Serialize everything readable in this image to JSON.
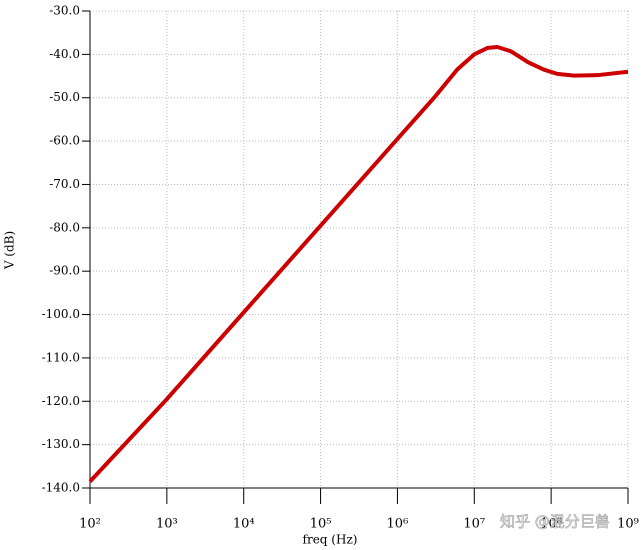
{
  "chart_data": {
    "type": "line",
    "x_label": "freq (Hz)",
    "y_label": "V (dB)",
    "log_x": true,
    "grid": true,
    "xlim": [
      100,
      1000000000
    ],
    "xticks": [
      {
        "value": 100,
        "label": "10²"
      },
      {
        "value": 1000,
        "label": "10³"
      },
      {
        "value": 10000,
        "label": "10⁴"
      },
      {
        "value": 100000,
        "label": "10⁵"
      },
      {
        "value": 1000000,
        "label": "10⁶"
      },
      {
        "value": 10000000,
        "label": "10⁷"
      },
      {
        "value": 100000000,
        "label": "10⁸"
      },
      {
        "value": 1000000000,
        "label": "10⁹"
      }
    ],
    "ylim": [
      -140,
      -30
    ],
    "yticks": [
      {
        "value": -30,
        "label": "-30.0"
      },
      {
        "value": -40,
        "label": "-40.0"
      },
      {
        "value": -50,
        "label": "-50.0"
      },
      {
        "value": -60,
        "label": "-60.0"
      },
      {
        "value": -70,
        "label": "-70.0"
      },
      {
        "value": -80,
        "label": "-80.0"
      },
      {
        "value": -90,
        "label": "-90.0"
      },
      {
        "value": -100,
        "label": "-100.0"
      },
      {
        "value": -110,
        "label": "-110.0"
      },
      {
        "value": -120,
        "label": "-120.0"
      },
      {
        "value": -130,
        "label": "-130.0"
      },
      {
        "value": -140,
        "label": "-140.0"
      }
    ],
    "series": [
      {
        "color": "#cc0000",
        "x": [
          100,
          1000,
          10000,
          100000,
          1000000,
          3000000,
          6000000,
          10000000,
          15000000,
          20000000,
          30000000,
          50000000,
          80000000,
          120000000,
          200000000,
          400000000,
          1000000000
        ],
        "values": [
          -138.5,
          -119.5,
          -99.5,
          -79.5,
          -59.5,
          -50,
          -43.5,
          -40,
          -38.5,
          -38.3,
          -39.3,
          -41.8,
          -43.5,
          -44.5,
          -44.9,
          -44.8,
          -44.0
        ]
      }
    ],
    "watermark": "知乎 @混分巨兽"
  }
}
